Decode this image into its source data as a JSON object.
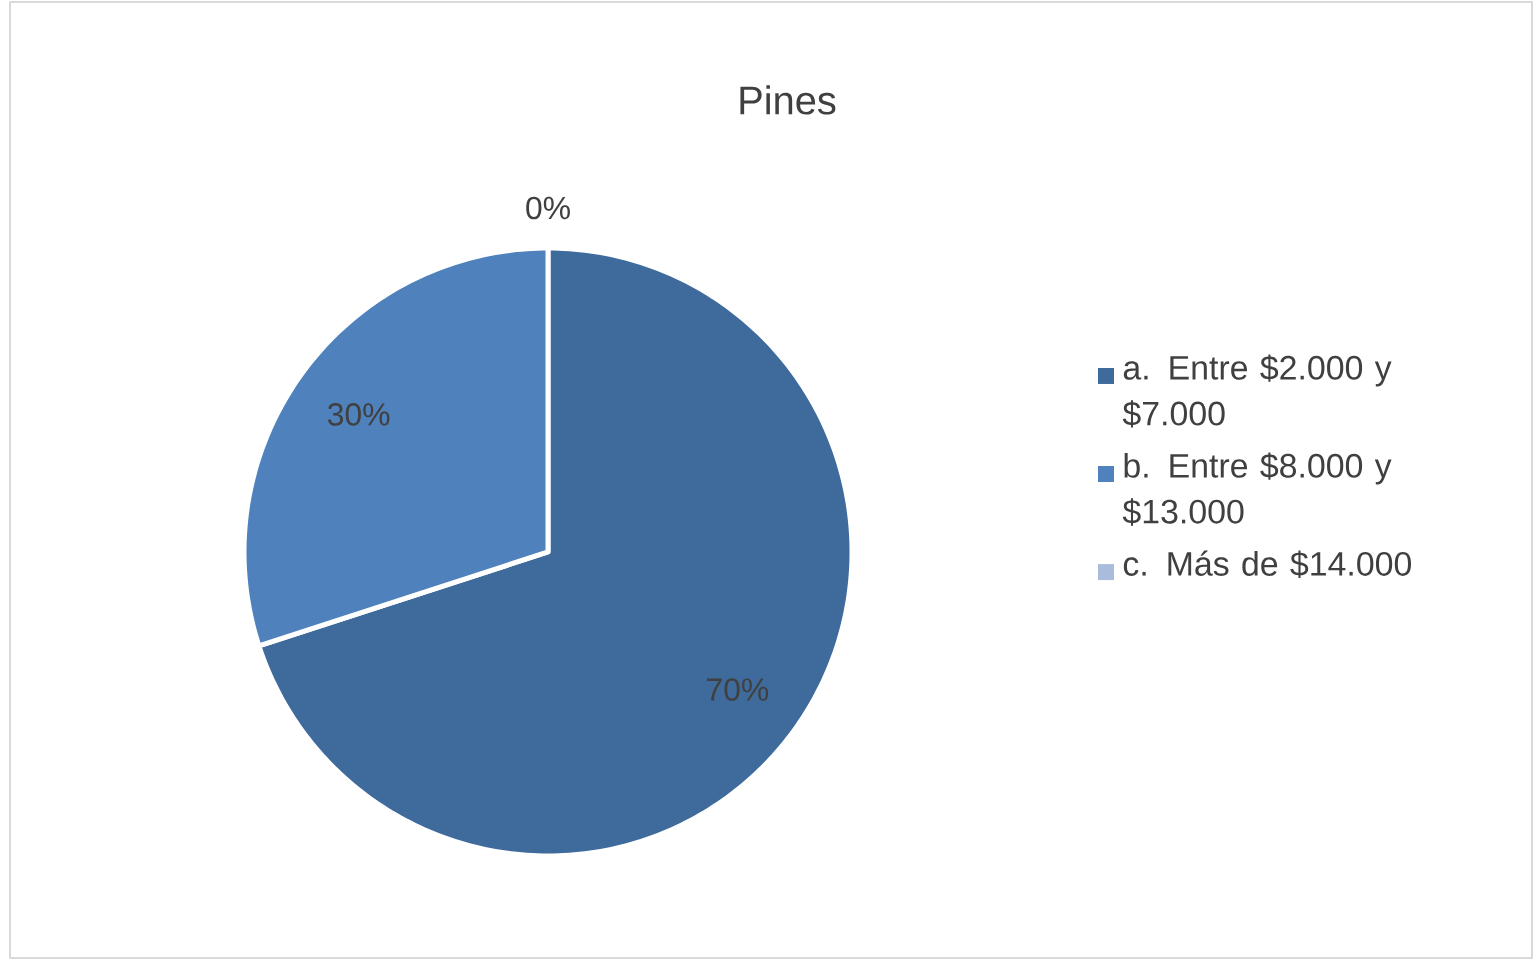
{
  "chart_data": {
    "type": "pie",
    "title": "Pines",
    "categories": [
      "a. Entre $2.000 y $7.000",
      "b. Entre $8.000 y $13.000",
      "c. Más de $14.000"
    ],
    "values": [
      70,
      30,
      0
    ],
    "value_labels": [
      "70%",
      "30%",
      "0%"
    ],
    "colors": [
      "#3f6a9c",
      "#4f81bd",
      "#a9bcdb"
    ],
    "legend": "right"
  }
}
